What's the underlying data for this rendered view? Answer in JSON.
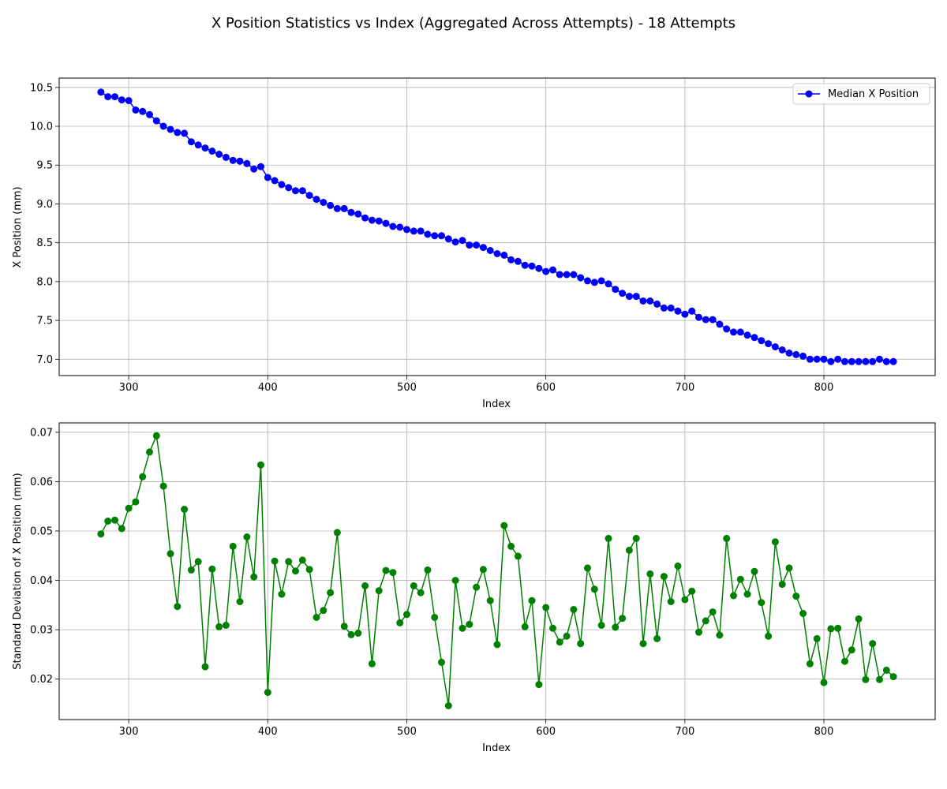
{
  "figure_title": "X Position Statistics vs Index (Aggregated Across Attempts) - 18 Attempts",
  "chart_data": [
    {
      "type": "line",
      "xlabel": "Index",
      "ylabel": "X Position (mm)",
      "xlim": [
        250,
        880
      ],
      "ylim": [
        6.79,
        10.62
      ],
      "xticks": [
        300,
        400,
        500,
        600,
        700,
        800
      ],
      "yticks": [
        7.0,
        7.5,
        8.0,
        8.5,
        9.0,
        9.5,
        10.0,
        10.5
      ],
      "grid": true,
      "legend_position": "upper right",
      "color": "#0000ff",
      "series": [
        {
          "name": "Median X Position",
          "x": [
            280,
            285,
            290,
            295,
            300,
            305,
            310,
            315,
            320,
            325,
            330,
            335,
            340,
            345,
            350,
            355,
            360,
            365,
            370,
            375,
            380,
            385,
            390,
            395,
            400,
            405,
            410,
            415,
            420,
            425,
            430,
            435,
            440,
            445,
            450,
            455,
            460,
            465,
            470,
            475,
            480,
            485,
            490,
            495,
            500,
            505,
            510,
            515,
            520,
            525,
            530,
            535,
            540,
            545,
            550,
            555,
            560,
            565,
            570,
            575,
            580,
            585,
            590,
            595,
            600,
            605,
            610,
            615,
            620,
            625,
            630,
            635,
            640,
            645,
            650,
            655,
            660,
            665,
            670,
            675,
            680,
            685,
            690,
            695,
            700,
            705,
            710,
            715,
            720,
            725,
            730,
            735,
            740,
            745,
            750,
            755,
            760,
            765,
            770,
            775,
            780,
            785,
            790,
            795,
            800,
            805,
            810,
            815,
            820,
            825,
            830,
            835,
            840,
            845,
            850
          ],
          "values": [
            10.44,
            10.38,
            10.38,
            10.34,
            10.33,
            10.21,
            10.19,
            10.15,
            10.07,
            10.0,
            9.96,
            9.92,
            9.91,
            9.8,
            9.76,
            9.72,
            9.68,
            9.64,
            9.6,
            9.56,
            9.55,
            9.52,
            9.45,
            9.48,
            9.34,
            9.3,
            9.25,
            9.21,
            9.17,
            9.17,
            9.11,
            9.06,
            9.02,
            8.98,
            8.94,
            8.94,
            8.89,
            8.87,
            8.82,
            8.79,
            8.78,
            8.75,
            8.71,
            8.7,
            8.67,
            8.65,
            8.65,
            8.61,
            8.59,
            8.59,
            8.55,
            8.51,
            8.53,
            8.47,
            8.47,
            8.44,
            8.4,
            8.36,
            8.34,
            8.28,
            8.26,
            8.21,
            8.2,
            8.17,
            8.13,
            8.15,
            8.09,
            8.09,
            8.09,
            8.05,
            8.01,
            7.99,
            8.01,
            7.97,
            7.9,
            7.85,
            7.81,
            7.81,
            7.75,
            7.75,
            7.71,
            7.66,
            7.66,
            7.62,
            7.58,
            7.62,
            7.54,
            7.51,
            7.51,
            7.45,
            7.39,
            7.35,
            7.35,
            7.31,
            7.28,
            7.24,
            7.2,
            7.16,
            7.12,
            7.08,
            7.06,
            7.04,
            7.0,
            7.0,
            7.0,
            6.97,
            7.0,
            6.97,
            6.97,
            6.97,
            6.97,
            6.97,
            7.0,
            6.97,
            6.97
          ]
        }
      ]
    },
    {
      "type": "line",
      "xlabel": "Index",
      "ylabel": "Standard Deviation of X Position (mm)",
      "xlim": [
        250,
        880
      ],
      "ylim": [
        0.0118,
        0.0719
      ],
      "xticks": [
        300,
        400,
        500,
        600,
        700,
        800
      ],
      "yticks": [
        0.02,
        0.03,
        0.04,
        0.05,
        0.06,
        0.07
      ],
      "grid": true,
      "color": "#008000",
      "series": [
        {
          "x": [
            280,
            285,
            290,
            295,
            300,
            305,
            310,
            315,
            320,
            325,
            330,
            335,
            340,
            345,
            350,
            355,
            360,
            365,
            370,
            375,
            380,
            385,
            390,
            395,
            400,
            405,
            410,
            415,
            420,
            425,
            430,
            435,
            440,
            445,
            450,
            455,
            460,
            465,
            470,
            475,
            480,
            485,
            490,
            495,
            500,
            505,
            510,
            515,
            520,
            525,
            530,
            535,
            540,
            545,
            550,
            555,
            560,
            565,
            570,
            575,
            580,
            585,
            590,
            595,
            600,
            605,
            610,
            615,
            620,
            625,
            630,
            635,
            640,
            645,
            650,
            655,
            660,
            665,
            670,
            675,
            680,
            685,
            690,
            695,
            700,
            705,
            710,
            715,
            720,
            725,
            730,
            735,
            740,
            745,
            750,
            755,
            760,
            765,
            770,
            775,
            780,
            785,
            790,
            795,
            800,
            805,
            810,
            815,
            820,
            825,
            830,
            835,
            840,
            845,
            850
          ],
          "values": [
            0.0494,
            0.052,
            0.0522,
            0.0505,
            0.0546,
            0.0559,
            0.061,
            0.066,
            0.0693,
            0.0591,
            0.0454,
            0.0347,
            0.0544,
            0.0421,
            0.0438,
            0.0225,
            0.0423,
            0.0306,
            0.0309,
            0.0469,
            0.0357,
            0.0488,
            0.0407,
            0.0634,
            0.0173,
            0.0439,
            0.0372,
            0.0438,
            0.0419,
            0.0441,
            0.0422,
            0.0325,
            0.0339,
            0.0375,
            0.0497,
            0.0307,
            0.029,
            0.0293,
            0.0389,
            0.0231,
            0.0379,
            0.042,
            0.0416,
            0.0314,
            0.0331,
            0.0389,
            0.0375,
            0.0421,
            0.0325,
            0.0234,
            0.0146,
            0.04,
            0.0303,
            0.0311,
            0.0386,
            0.0422,
            0.0359,
            0.027,
            0.0511,
            0.0469,
            0.0449,
            0.0306,
            0.0359,
            0.0189,
            0.0345,
            0.0303,
            0.0275,
            0.0287,
            0.0341,
            0.0272,
            0.0425,
            0.0382,
            0.0309,
            0.0485,
            0.0305,
            0.0323,
            0.0461,
            0.0485,
            0.0272,
            0.0413,
            0.0282,
            0.0408,
            0.0357,
            0.0429,
            0.0361,
            0.0378,
            0.0295,
            0.0318,
            0.0336,
            0.0289,
            0.0485,
            0.0369,
            0.0402,
            0.0372,
            0.0418,
            0.0355,
            0.0287,
            0.0478,
            0.0392,
            0.0425,
            0.0368,
            0.0333,
            0.0231,
            0.0282,
            0.0193,
            0.0302,
            0.0303,
            0.0236,
            0.0259,
            0.0322,
            0.0199,
            0.0272,
            0.0199,
            0.0218,
            0.0205
          ]
        }
      ]
    }
  ]
}
